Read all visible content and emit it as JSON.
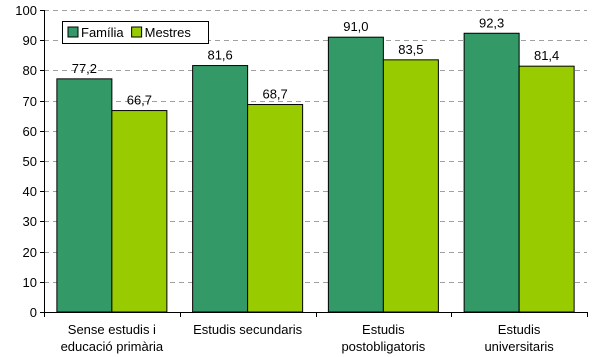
{
  "chart_data": {
    "type": "bar",
    "categories": [
      [
        "Sense estudis i",
        "educació primària"
      ],
      [
        "Estudis secundaris"
      ],
      [
        "Estudis",
        "postobligatoris"
      ],
      [
        "Estudis",
        "universitaris"
      ]
    ],
    "series": [
      {
        "name": "Família",
        "values": [
          77.2,
          81.6,
          91.0,
          92.3
        ],
        "labels": [
          "77,2",
          "81,6",
          "91,0",
          "92,3"
        ],
        "color": "#339966"
      },
      {
        "name": "Mestres",
        "values": [
          66.7,
          68.7,
          83.5,
          81.4
        ],
        "labels": [
          "66,7",
          "68,7",
          "83,5",
          "81,4"
        ],
        "color": "#99cc00"
      }
    ],
    "ylim": [
      0,
      100
    ],
    "yticks": [
      0,
      10,
      20,
      30,
      40,
      50,
      60,
      70,
      80,
      90,
      100
    ],
    "grid": "dashed-horizontal",
    "legend_position": "top-left",
    "title": "",
    "xlabel": "",
    "ylabel": ""
  }
}
